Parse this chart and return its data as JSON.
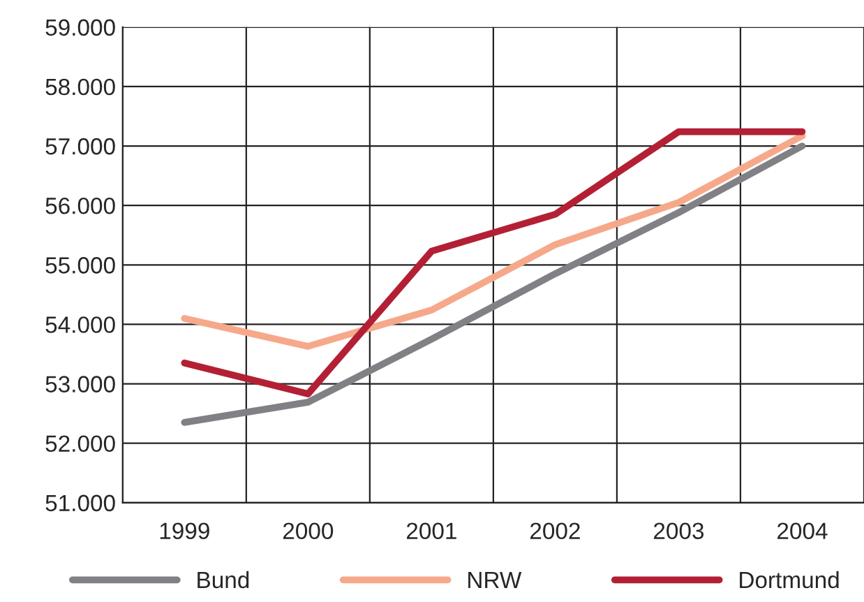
{
  "chart_data": {
    "type": "line",
    "categories": [
      "1999",
      "2000",
      "2001",
      "2002",
      "2003",
      "2004"
    ],
    "series": [
      {
        "name": "Bund",
        "color": "#808085",
        "values": [
          52350,
          52690,
          53750,
          54850,
          55880,
          57000
        ]
      },
      {
        "name": "NRW",
        "color": "#f6a98a",
        "values": [
          54100,
          53630,
          54240,
          55340,
          56050,
          57170
        ]
      },
      {
        "name": "Dortmund",
        "color": "#b32035",
        "values": [
          53350,
          52830,
          55230,
          55850,
          57240,
          57240
        ]
      }
    ],
    "ylim": [
      51000,
      59000
    ],
    "yticks": [
      {
        "value": 51000,
        "label": "51.000"
      },
      {
        "value": 52000,
        "label": "52.000"
      },
      {
        "value": 53000,
        "label": "53.000"
      },
      {
        "value": 54000,
        "label": "54.000"
      },
      {
        "value": 55000,
        "label": "55.000"
      },
      {
        "value": 56000,
        "label": "56.000"
      },
      {
        "value": 57000,
        "label": "57.000"
      },
      {
        "value": 58000,
        "label": "58.000"
      },
      {
        "value": 59000,
        "label": "59.000"
      }
    ],
    "grid": true,
    "legend": "bottom",
    "marker": "none",
    "line_style": "solid"
  }
}
